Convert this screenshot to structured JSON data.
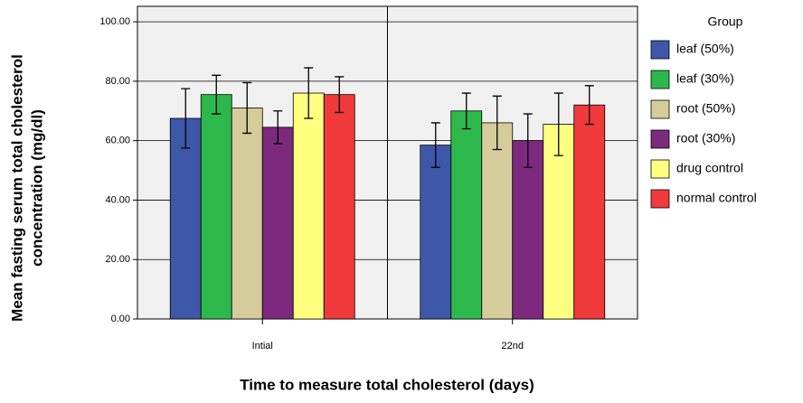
{
  "chart_data": {
    "type": "bar",
    "ylabel": [
      "Mean fasting serum total cholesterol",
      "concentration (mg/dl)"
    ],
    "xlabel": "Time to measure total cholesterol (days)",
    "legend_title": "Group",
    "categories": [
      "Intial",
      "22nd"
    ],
    "series": [
      {
        "name": "leaf (50%)",
        "color": "#3f57a8",
        "values": [
          67.5,
          58.5
        ],
        "errors": [
          10,
          7.5
        ]
      },
      {
        "name": "leaf (30%)",
        "color": "#2db84b",
        "values": [
          75.5,
          70
        ],
        "errors": [
          6.5,
          6
        ]
      },
      {
        "name": "root (50%)",
        "color": "#d4cc9a",
        "values": [
          71,
          66
        ],
        "errors": [
          8.5,
          9
        ]
      },
      {
        "name": "root (30%)",
        "color": "#7d2a7e",
        "values": [
          64.5,
          60
        ],
        "errors": [
          5.5,
          9
        ]
      },
      {
        "name": "drug control",
        "color": "#ffff80",
        "values": [
          76,
          65.5
        ],
        "errors": [
          8.5,
          10.5
        ]
      },
      {
        "name": "normal control",
        "color": "#f03a3c",
        "values": [
          75.5,
          72
        ],
        "errors": [
          6,
          6.5
        ]
      }
    ],
    "ylim": [
      0,
      105.2
    ],
    "yticks": [
      {
        "value": 0,
        "label": "0.00"
      },
      {
        "value": 20,
        "label": "20.00"
      },
      {
        "value": 40,
        "label": "40.00"
      },
      {
        "value": 60,
        "label": "60.00"
      },
      {
        "value": 80,
        "label": "80.00"
      },
      {
        "value": 100,
        "label": "100.00"
      }
    ],
    "grid": true
  }
}
